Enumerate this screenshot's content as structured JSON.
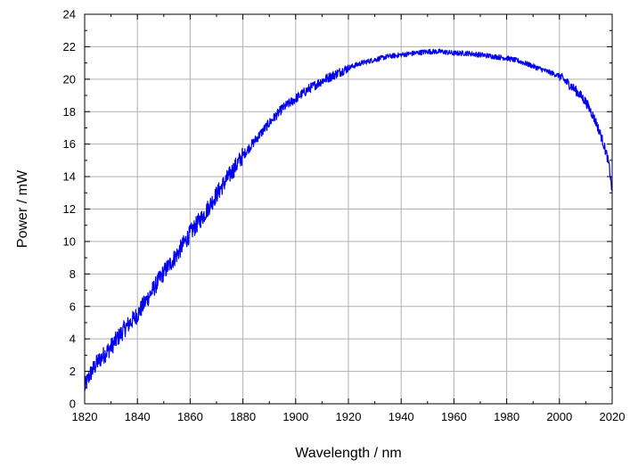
{
  "chart_data": {
    "type": "line",
    "title": "",
    "xlabel": "Wavelength / nm",
    "ylabel": "Power / mW",
    "xlim": [
      1820,
      2020
    ],
    "ylim": [
      0,
      24
    ],
    "x_ticks": [
      1820,
      1840,
      1860,
      1880,
      1900,
      1920,
      1940,
      1960,
      1980,
      2000,
      2020
    ],
    "y_ticks": [
      0,
      2,
      4,
      6,
      8,
      10,
      12,
      14,
      16,
      18,
      20,
      22,
      24
    ],
    "x_minor_step": 10,
    "y_minor_step": 1,
    "grid": true,
    "line_color": "#0000ee",
    "series": [
      {
        "x": [
          1820,
          1822,
          1825,
          1830,
          1835,
          1840,
          1845,
          1850,
          1855,
          1860,
          1865,
          1870,
          1875,
          1880,
          1885,
          1890,
          1895,
          1900,
          1905,
          1910,
          1915,
          1920,
          1925,
          1930,
          1935,
          1940,
          1945,
          1950,
          1955,
          1960,
          1965,
          1970,
          1975,
          1980,
          1985,
          1990,
          1995,
          2000,
          2005,
          2008,
          2010,
          2012,
          2014,
          2016,
          2018,
          2019,
          2020
        ],
        "y": [
          1.0,
          1.8,
          2.6,
          3.5,
          4.6,
          5.5,
          6.8,
          8.1,
          9.2,
          10.5,
          11.6,
          12.9,
          14.1,
          15.3,
          16.3,
          17.3,
          18.2,
          18.8,
          19.4,
          19.9,
          20.3,
          20.7,
          21.0,
          21.2,
          21.4,
          21.5,
          21.6,
          21.7,
          21.7,
          21.6,
          21.6,
          21.5,
          21.4,
          21.3,
          21.1,
          20.8,
          20.5,
          20.2,
          19.5,
          19.0,
          18.6,
          18.0,
          17.3,
          16.4,
          15.3,
          14.5,
          13.0
        ]
      }
    ]
  }
}
